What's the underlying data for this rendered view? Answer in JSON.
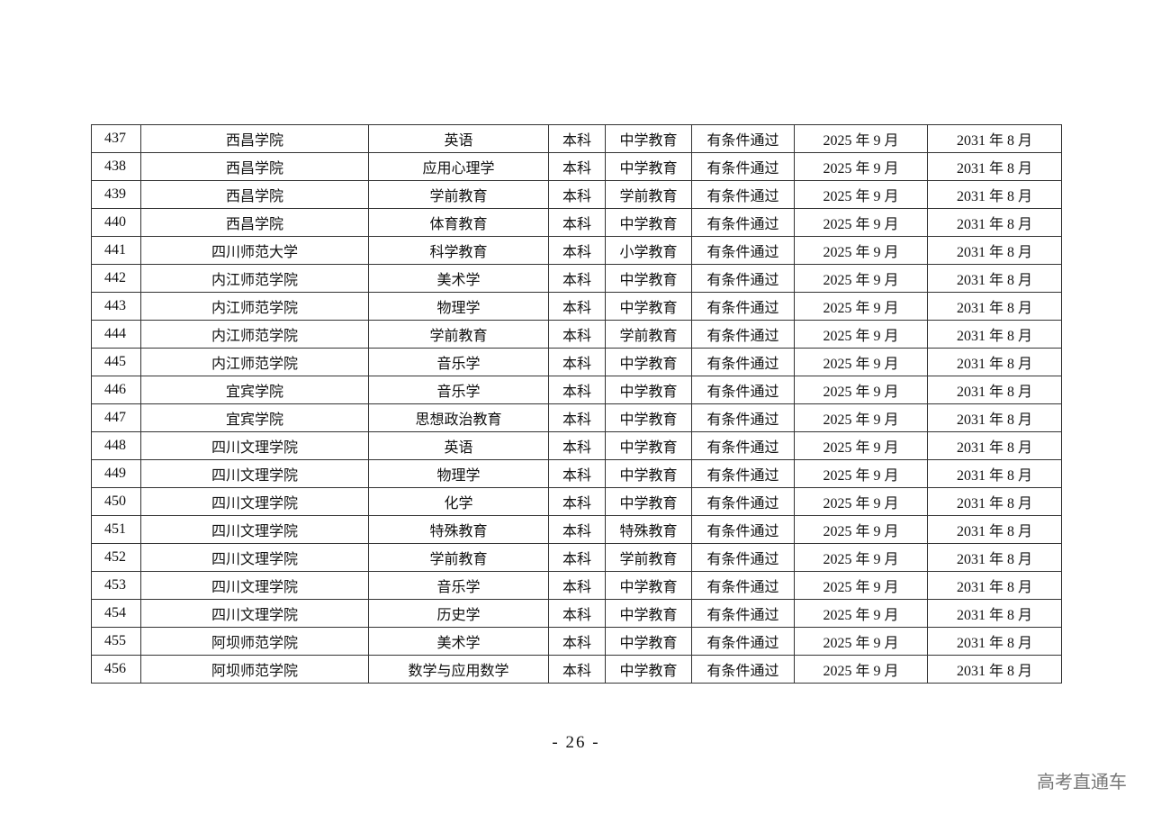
{
  "table": {
    "rows": [
      [
        "437",
        "西昌学院",
        "英语",
        "本科",
        "中学教育",
        "有条件通过",
        "2025 年 9 月",
        "2031 年 8 月"
      ],
      [
        "438",
        "西昌学院",
        "应用心理学",
        "本科",
        "中学教育",
        "有条件通过",
        "2025 年 9 月",
        "2031 年 8 月"
      ],
      [
        "439",
        "西昌学院",
        "学前教育",
        "本科",
        "学前教育",
        "有条件通过",
        "2025 年 9 月",
        "2031 年 8 月"
      ],
      [
        "440",
        "西昌学院",
        "体育教育",
        "本科",
        "中学教育",
        "有条件通过",
        "2025 年 9 月",
        "2031 年 8 月"
      ],
      [
        "441",
        "四川师范大学",
        "科学教育",
        "本科",
        "小学教育",
        "有条件通过",
        "2025 年 9 月",
        "2031 年 8 月"
      ],
      [
        "442",
        "内江师范学院",
        "美术学",
        "本科",
        "中学教育",
        "有条件通过",
        "2025 年 9 月",
        "2031 年 8 月"
      ],
      [
        "443",
        "内江师范学院",
        "物理学",
        "本科",
        "中学教育",
        "有条件通过",
        "2025 年 9 月",
        "2031 年 8 月"
      ],
      [
        "444",
        "内江师范学院",
        "学前教育",
        "本科",
        "学前教育",
        "有条件通过",
        "2025 年 9 月",
        "2031 年 8 月"
      ],
      [
        "445",
        "内江师范学院",
        "音乐学",
        "本科",
        "中学教育",
        "有条件通过",
        "2025 年 9 月",
        "2031 年 8 月"
      ],
      [
        "446",
        "宜宾学院",
        "音乐学",
        "本科",
        "中学教育",
        "有条件通过",
        "2025 年 9 月",
        "2031 年 8 月"
      ],
      [
        "447",
        "宜宾学院",
        "思想政治教育",
        "本科",
        "中学教育",
        "有条件通过",
        "2025 年 9 月",
        "2031 年 8 月"
      ],
      [
        "448",
        "四川文理学院",
        "英语",
        "本科",
        "中学教育",
        "有条件通过",
        "2025 年 9 月",
        "2031 年 8 月"
      ],
      [
        "449",
        "四川文理学院",
        "物理学",
        "本科",
        "中学教育",
        "有条件通过",
        "2025 年 9 月",
        "2031 年 8 月"
      ],
      [
        "450",
        "四川文理学院",
        "化学",
        "本科",
        "中学教育",
        "有条件通过",
        "2025 年 9 月",
        "2031 年 8 月"
      ],
      [
        "451",
        "四川文理学院",
        "特殊教育",
        "本科",
        "特殊教育",
        "有条件通过",
        "2025 年 9 月",
        "2031 年 8 月"
      ],
      [
        "452",
        "四川文理学院",
        "学前教育",
        "本科",
        "学前教育",
        "有条件通过",
        "2025 年 9 月",
        "2031 年 8 月"
      ],
      [
        "453",
        "四川文理学院",
        "音乐学",
        "本科",
        "中学教育",
        "有条件通过",
        "2025 年 9 月",
        "2031 年 8 月"
      ],
      [
        "454",
        "四川文理学院",
        "历史学",
        "本科",
        "中学教育",
        "有条件通过",
        "2025 年 9 月",
        "2031 年 8 月"
      ],
      [
        "455",
        "阿坝师范学院",
        "美术学",
        "本科",
        "中学教育",
        "有条件通过",
        "2025 年 9 月",
        "2031 年 8 月"
      ],
      [
        "456",
        "阿坝师范学院",
        "数学与应用数学",
        "本科",
        "中学教育",
        "有条件通过",
        "2025 年 9 月",
        "2031 年 8 月"
      ]
    ]
  },
  "footer": {
    "page_number": "- 26 -",
    "watermark": "高考直通车"
  }
}
